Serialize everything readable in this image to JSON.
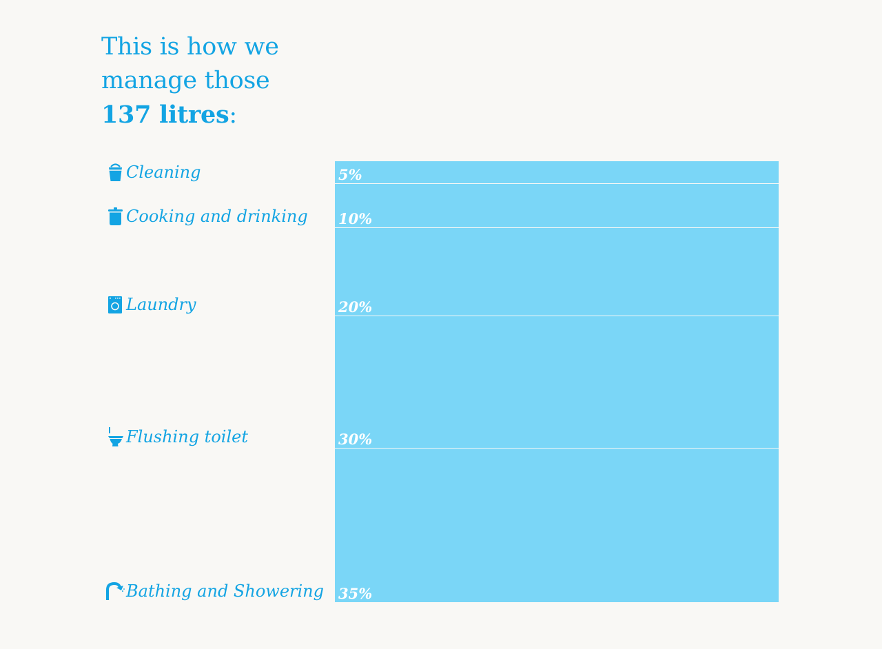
{
  "header": {
    "line1": "This is how we",
    "line2": "manage those",
    "amount": "137 litres",
    "suffix": ":"
  },
  "colors": {
    "accent": "#13a4e3",
    "bar": "#7ad6f7",
    "background": "#f9f8f5",
    "label_text": "#ffffff"
  },
  "chart_data": {
    "type": "bar",
    "stacked": true,
    "categories": [
      "Cleaning",
      "Cooking and drinking",
      "Laundry",
      "Flushing toilet",
      "Bathing and Showering"
    ],
    "icons": [
      "bucket-icon",
      "pot-icon",
      "washing-machine-icon",
      "toilet-icon",
      "shower-icon"
    ],
    "values": [
      5,
      10,
      20,
      30,
      35
    ],
    "value_labels": [
      "5%",
      "10%",
      "20%",
      "30%",
      "35%"
    ],
    "unit": "%",
    "total": 100
  }
}
